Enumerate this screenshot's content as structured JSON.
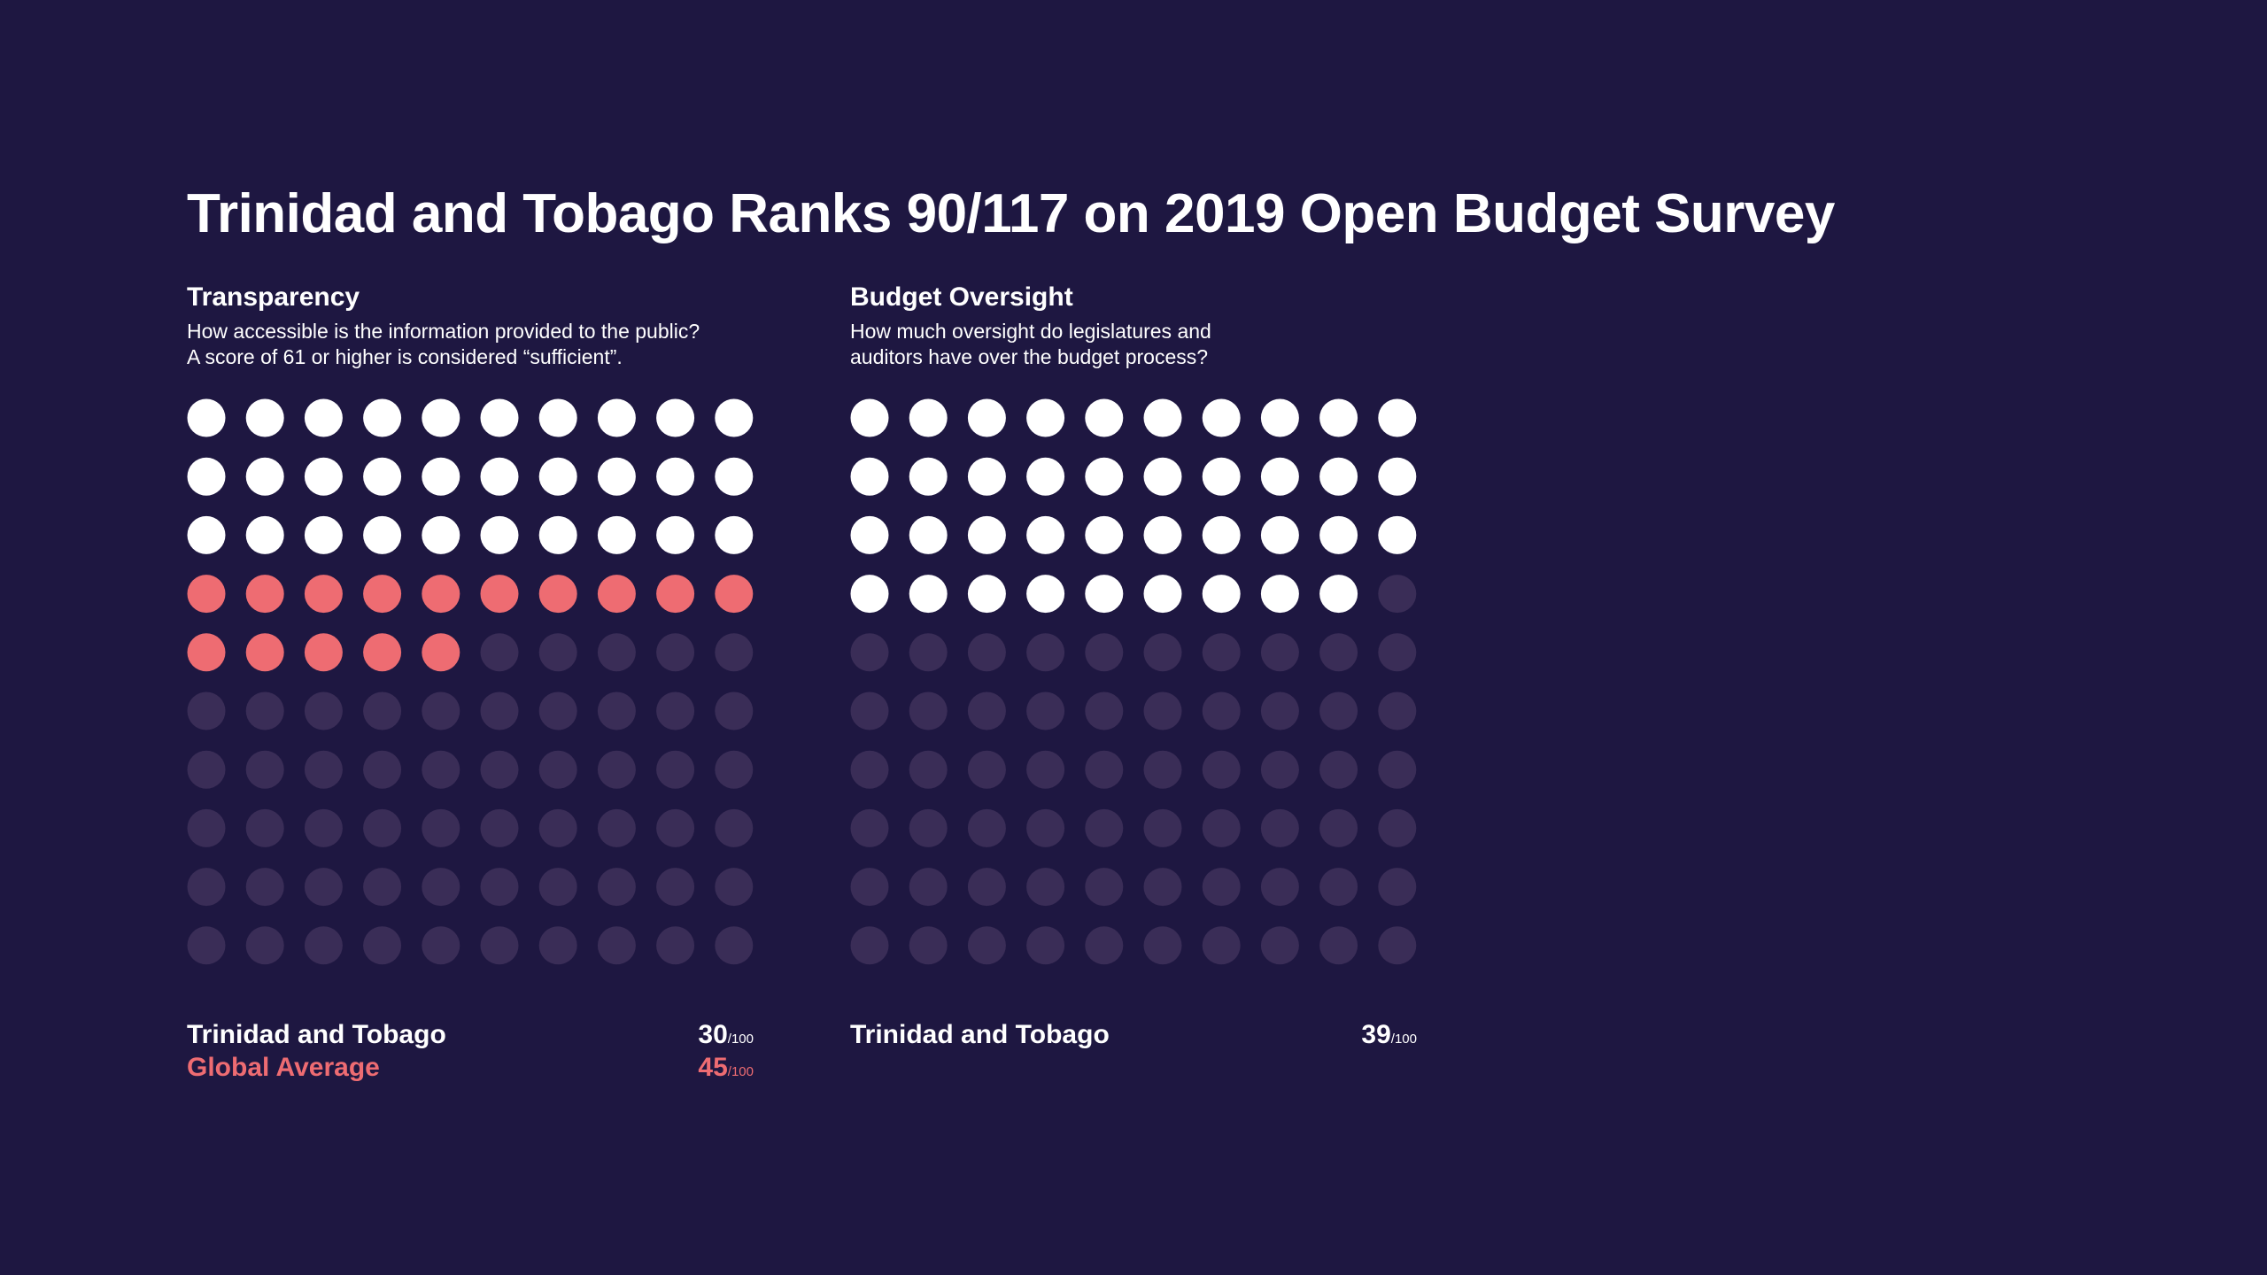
{
  "title": "Trinidad and Tobago Ranks 90/117 on 2019 Open Budget Survey",
  "colors": {
    "background": "#1e1741",
    "country": "#ffffff",
    "global": "#ee6c72",
    "empty": "#3a2d57"
  },
  "chart_data": [
    {
      "type": "waffle",
      "title": "Transparency",
      "subtitle_lines": [
        "How accessible is the information provided to the public?",
        "A score of 61 or higher is considered “sufficient”."
      ],
      "total": 100,
      "grid": [
        10,
        10
      ],
      "series": [
        {
          "name": "Trinidad and Tobago",
          "value": 30,
          "color": "#ffffff"
        },
        {
          "name": "Global Average",
          "value": 45,
          "color": "#ee6c72"
        }
      ],
      "denominator": "/100"
    },
    {
      "type": "waffle",
      "title": "Budget Oversight",
      "subtitle_lines": [
        "How much oversight do legislatures and",
        "auditors have over the budget process?"
      ],
      "total": 100,
      "grid": [
        10,
        10
      ],
      "series": [
        {
          "name": "Trinidad and Tobago",
          "value": 39,
          "color": "#ffffff"
        }
      ],
      "denominator": "/100"
    }
  ]
}
